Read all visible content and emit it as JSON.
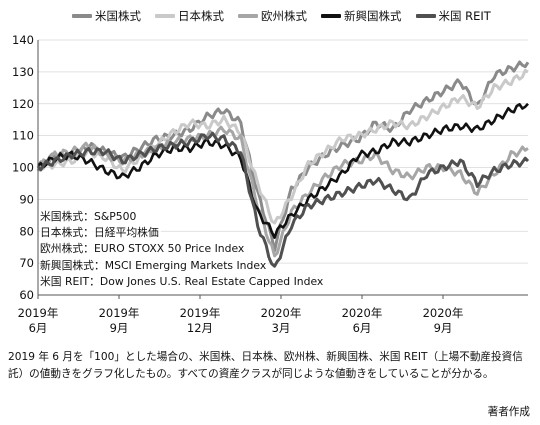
{
  "chart_data": {
    "type": "line",
    "xlabel": "",
    "ylabel": "",
    "ylim": [
      60,
      140
    ],
    "yticks": [
      60,
      70,
      80,
      90,
      100,
      110,
      120,
      130,
      140
    ],
    "xticks": [
      {
        "line1": "2019年",
        "line2": "6月"
      },
      {
        "line1": "2019年",
        "line2": "9月"
      },
      {
        "line1": "2019年",
        "line2": "12月"
      },
      {
        "line1": "2020年",
        "line2": "3月"
      },
      {
        "line1": "2020年",
        "line2": "6月"
      },
      {
        "line1": "2020年",
        "line2": "9月"
      }
    ],
    "grid": "horizontal",
    "legend_position": "top",
    "series": [
      {
        "name": "米国株式",
        "color": "#8a8a8a",
        "width": 3.0,
        "values": [
          100,
          104,
          103,
          107,
          105,
          103,
          106,
          109,
          110,
          112,
          116,
          118,
          114,
          92,
          75,
          93,
          100,
          104,
          107,
          109,
          114,
          112,
          118,
          121,
          124,
          127,
          119,
          129,
          131,
          133
        ]
      },
      {
        "name": "日本株式",
        "color": "#c9c9c9",
        "width": 3.0,
        "values": [
          100,
          101,
          102,
          105,
          103,
          99,
          103,
          107,
          111,
          114,
          113,
          115,
          111,
          95,
          82,
          91,
          101,
          105,
          109,
          110,
          112,
          114,
          113,
          116,
          119,
          122,
          119,
          125,
          127,
          130
        ]
      },
      {
        "name": "欧州株式",
        "color": "#a6a6a6",
        "width": 3.0,
        "values": [
          100,
          104,
          105,
          107,
          104,
          102,
          104,
          106,
          108,
          109,
          110,
          112,
          109,
          88,
          72,
          86,
          92,
          97,
          101,
          102,
          104,
          99,
          97,
          100,
          100,
          98,
          92,
          98,
          104,
          106
        ]
      },
      {
        "name": "新興国株式",
        "color": "#111111",
        "width": 2.6,
        "values": [
          100,
          103,
          104,
          102,
          99,
          97,
          100,
          104,
          106,
          106,
          108,
          107,
          103,
          86,
          79,
          85,
          90,
          94,
          98,
          104,
          105,
          108,
          108,
          110,
          112,
          113,
          112,
          115,
          118,
          120
        ]
      },
      {
        "name": "米国 REIT",
        "color": "#505050",
        "width": 3.0,
        "values": [
          100,
          102,
          104,
          105,
          105,
          102,
          104,
          106,
          107,
          108,
          110,
          109,
          105,
          82,
          68,
          82,
          88,
          90,
          92,
          94,
          96,
          93,
          90,
          98,
          100,
          102,
          95,
          99,
          101,
          102
        ]
      }
    ]
  },
  "notes": [
    "米国株式：S&P500",
    "日本株式：日経平均株価",
    "欧州株式：EURO STOXX 50 Price Index",
    "新興国株式：MSCI Emerging Markets Index",
    "米国 REIT：Dow Jones U.S. Real Estate Capped Index"
  ],
  "caption": "2019 年 6 月を「100」とした場合の、米国株、日本株、欧州株、新興国株、米国 REIT（上場不動産投資信託）の値動きをグラフ化したもの。すべての資産クラスが同じような値動きをしていることが分かる。",
  "source": "著者作成"
}
